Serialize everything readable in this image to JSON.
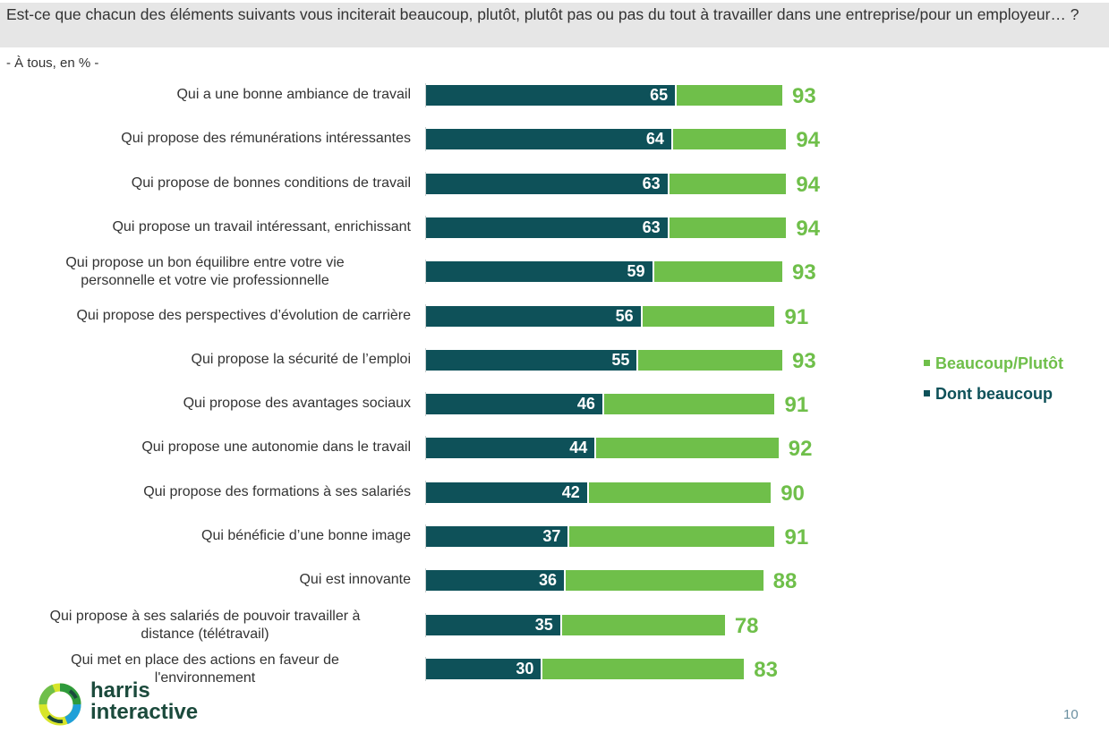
{
  "header": {
    "question": "Est-ce que chacun des éléments suivants vous inciterait beaucoup, plutôt, plutôt pas ou pas du tout à travailler dans une entreprise/pour un employeur… ?",
    "subtitle": "- À tous, en % -"
  },
  "colors": {
    "dark": "#0e5159",
    "light": "#6fbf4a"
  },
  "chart_data": {
    "type": "bar",
    "orientation": "horizontal",
    "title": "Est-ce que chacun des éléments suivants vous inciterait beaucoup, plutôt, plutôt pas ou pas du tout à travailler dans une entreprise/pour un employeur… ?",
    "subtitle": "- À tous, en % -",
    "xlim": [
      0,
      100
    ],
    "grid": false,
    "legend_position": "right",
    "categories": [
      "Qui a une bonne ambiance de travail",
      "Qui propose des rémunérations intéressantes",
      "Qui propose de bonnes conditions de travail",
      "Qui propose un travail intéressant, enrichissant",
      "Qui propose un bon équilibre entre votre vie personnelle et votre vie professionnelle",
      "Qui propose des perspectives d’évolution de carrière",
      "Qui propose la sécurité de l’emploi",
      "Qui propose des avantages sociaux",
      "Qui propose une autonomie dans le travail",
      "Qui propose des formations à ses salariés",
      "Qui bénéficie d’une bonne image",
      "Qui est innovante",
      "Qui propose à ses salariés de pouvoir travailler à distance (télétravail)",
      "Qui met en place des actions en faveur de l'environnement"
    ],
    "series": [
      {
        "name": "Beaucoup/Plutôt",
        "values": [
          93,
          94,
          94,
          94,
          93,
          91,
          93,
          91,
          92,
          90,
          91,
          88,
          78,
          83
        ]
      },
      {
        "name": "Dont beaucoup",
        "values": [
          65,
          64,
          63,
          63,
          59,
          56,
          55,
          46,
          44,
          42,
          37,
          36,
          35,
          30
        ]
      }
    ]
  },
  "category_lines": [
    [
      "Qui a une bonne ambiance de travail"
    ],
    [
      "Qui propose des rémunérations intéressantes"
    ],
    [
      "Qui propose de bonnes conditions de travail"
    ],
    [
      "Qui propose un travail intéressant, enrichissant"
    ],
    [
      "Qui propose un bon équilibre entre votre vie",
      "personnelle et votre vie professionnelle"
    ],
    [
      "Qui propose des perspectives d’évolution de carrière"
    ],
    [
      "Qui propose la sécurité de l’emploi"
    ],
    [
      "Qui propose des avantages sociaux"
    ],
    [
      "Qui propose une autonomie dans le travail"
    ],
    [
      "Qui propose des formations à ses salariés"
    ],
    [
      "Qui bénéficie d’une bonne image"
    ],
    [
      "Qui est innovante"
    ],
    [
      "Qui propose à ses salariés de pouvoir travailler à",
      "distance (télétravail)"
    ],
    [
      "Qui met en place des actions en faveur de",
      "l'environnement"
    ]
  ],
  "legend": {
    "items": [
      {
        "label": "Beaucoup/Plutôt",
        "color": "#6fbf4a"
      },
      {
        "label": "Dont beaucoup",
        "color": "#0e5159"
      }
    ]
  },
  "footer": {
    "logo_line1": "harris",
    "logo_line2": "interactive",
    "page_number": "10"
  }
}
